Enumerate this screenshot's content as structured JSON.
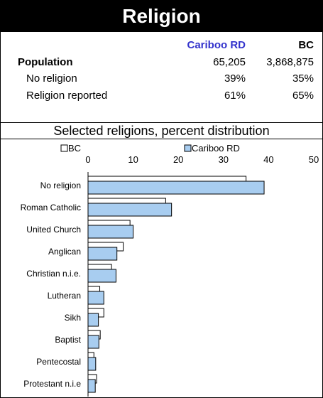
{
  "header": {
    "title": "Religion"
  },
  "summary": {
    "columns": [
      "Cariboo RD",
      "BC"
    ],
    "rows": [
      {
        "label": "Population",
        "cariboo": "65,205",
        "bc": "3,868,875"
      },
      {
        "label": "No religion",
        "cariboo": "39%",
        "bc": "35%"
      },
      {
        "label": "Religion reported",
        "cariboo": "61%",
        "bc": "65%"
      }
    ]
  },
  "colors": {
    "cariboo_fill": "#a8cdf0",
    "bc_fill": "#ffffff",
    "bar_stroke": "#000000",
    "header_accent": "#3333cc"
  },
  "chart_data": {
    "type": "bar",
    "orientation": "horizontal",
    "title": "Selected religions, percent distribution",
    "xlim": [
      0,
      50
    ],
    "xticks": [
      0,
      10,
      20,
      30,
      40,
      50
    ],
    "legend": [
      "BC",
      "Cariboo RD"
    ],
    "legend_position": "top",
    "categories": [
      "No religion",
      "Roman Catholic",
      "United Church",
      "Anglican",
      "Christian n.i.e.",
      "Lutheran",
      "Sikh",
      "Baptist",
      "Pentecostal",
      "Protestant n.i.e"
    ],
    "series": [
      {
        "name": "BC",
        "values": [
          35,
          17.2,
          9.3,
          7.8,
          5.2,
          2.6,
          3.5,
          2.7,
          1.3,
          1.9
        ]
      },
      {
        "name": "Cariboo RD",
        "values": [
          39,
          18.5,
          10,
          6.4,
          6.2,
          3.5,
          2.3,
          2.4,
          1.7,
          1.6
        ]
      }
    ]
  }
}
